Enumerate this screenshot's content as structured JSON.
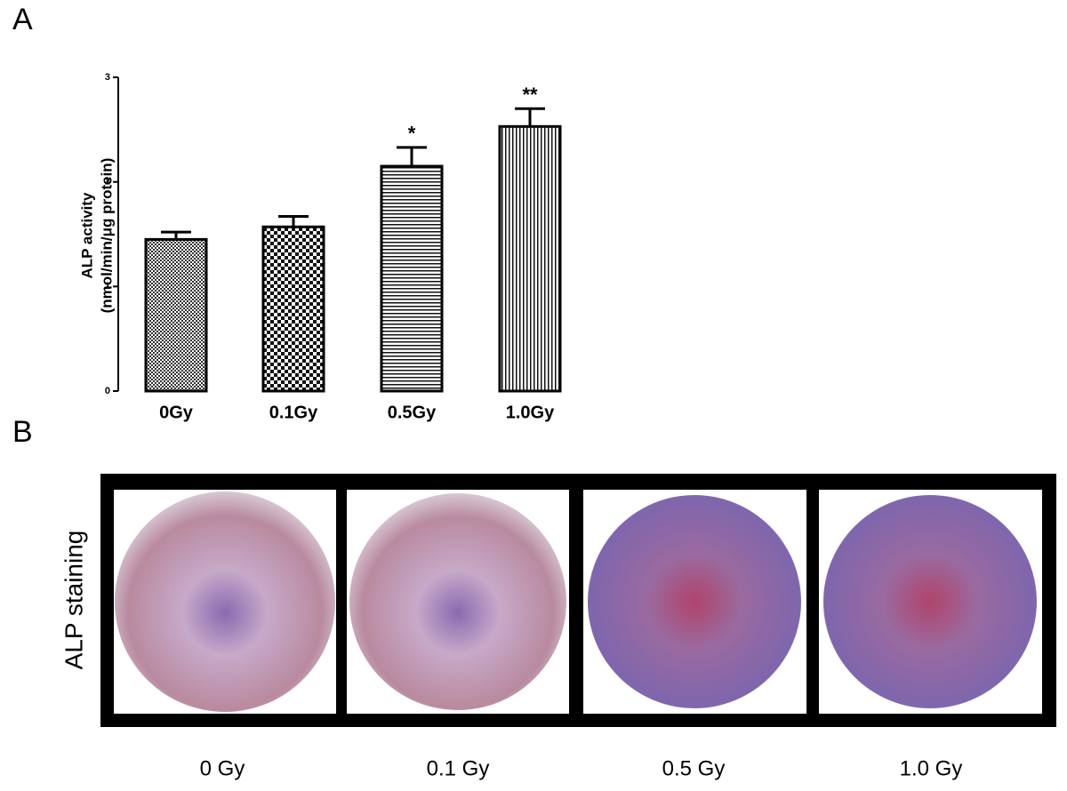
{
  "panel_a_label": "A",
  "chart_data": {
    "type": "bar",
    "y_label": [
      "ALP activity",
      "(nmol/min/μg protein)"
    ],
    "categories": [
      "0Gy",
      "0.1Gy",
      "0.5Gy",
      "1.0Gy"
    ],
    "values": [
      1.45,
      1.57,
      2.15,
      2.53
    ],
    "errors": [
      0.07,
      0.1,
      0.18,
      0.17
    ],
    "annotations": [
      null,
      null,
      "*",
      "**"
    ],
    "patterns": [
      "fine",
      "checker",
      "hlines",
      "vlines"
    ],
    "color": "#000000",
    "ylim": [
      0,
      3
    ],
    "yticks": [
      0,
      1,
      2,
      3
    ]
  },
  "panel_b_label": "B",
  "staining": {
    "row_label": "ALP staining",
    "labels": [
      "0 Gy",
      "0.1 Gy",
      "0.5 Gy",
      "1.0 Gy"
    ]
  }
}
